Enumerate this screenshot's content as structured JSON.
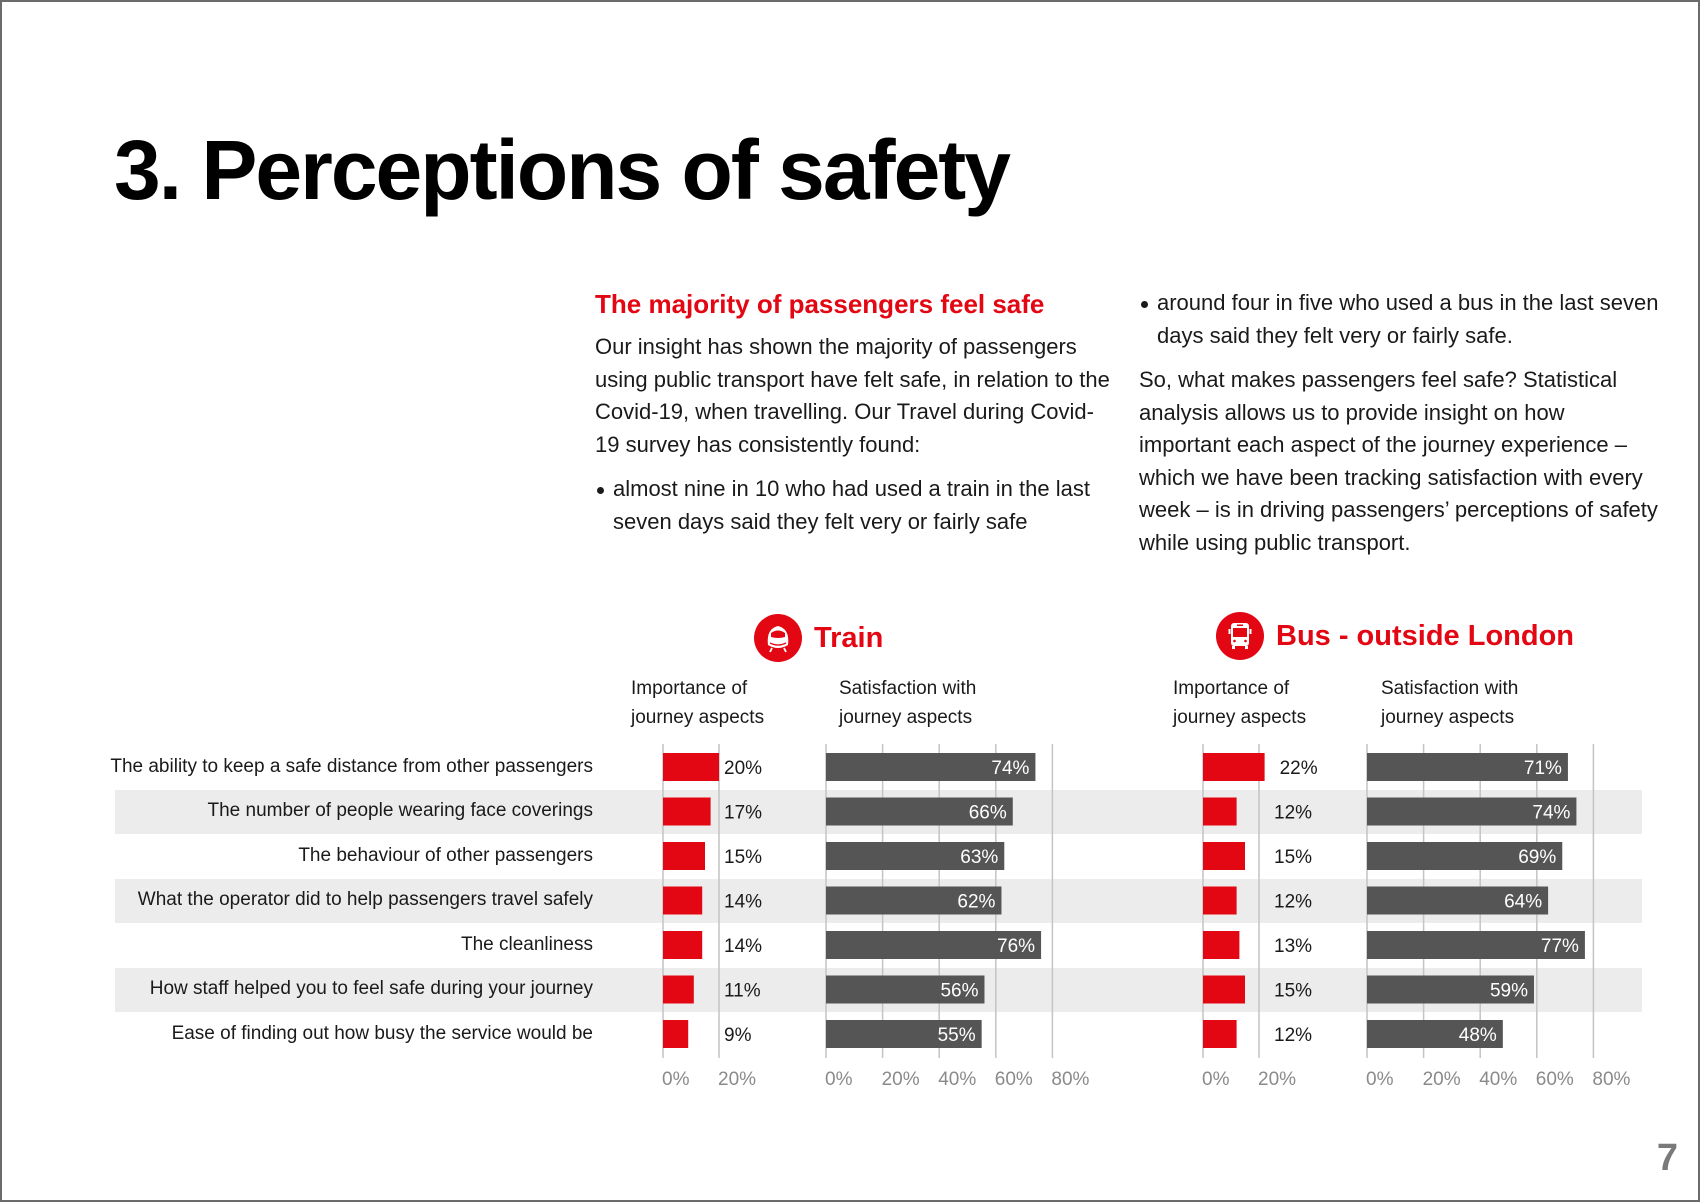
{
  "page": {
    "title": "3. Perceptions of safety",
    "page_number": "7"
  },
  "intro": {
    "subheading": "The majority of passengers feel safe",
    "paragraph1": "Our insight has shown the majority of passengers using public transport have felt safe, in relation to the Covid-19, when travelling. Our Travel during Covid-19 survey has consistently found:",
    "bullet1": "almost nine in 10 who had used a train in the last seven days said they felt very or fairly safe",
    "bullet2": "around four in five who used a bus in the last seven days said they felt very or fairly safe.",
    "paragraph2": "So, what makes passengers feel safe? Statistical analysis allows us to provide insight on how important each aspect of the journey experience – which we have been tracking satisfaction with every week – is in driving passengers’ perceptions of safety while using public transport."
  },
  "colors": {
    "accent_red": "#e30613",
    "bar_grey": "#555555",
    "band_grey": "#ececec",
    "axis_label_grey": "#8a8a8a"
  },
  "icons": {
    "train": "train-icon",
    "bus": "bus-icon"
  },
  "chart_data": {
    "type": "bar",
    "orientation": "horizontal",
    "categories": [
      "The ability to keep a safe distance from other passengers",
      "The number of people wearing face coverings",
      "The behaviour of other passengers",
      "What the operator did to help passengers travel safely",
      "The cleanliness",
      "How staff helped you to feel safe during your journey",
      "Ease of finding out how busy the service would be"
    ],
    "panels": [
      {
        "mode": "Train",
        "importance": {
          "header": [
            "Importance of",
            "journey aspects"
          ],
          "values": [
            20,
            17,
            15,
            14,
            14,
            11,
            9
          ],
          "labels": [
            "20%",
            "17%",
            "15%",
            "14%",
            "14%",
            "11%",
            "9%"
          ],
          "xlim": [
            0,
            20
          ],
          "ticks": [
            "0%",
            "20%"
          ]
        },
        "satisfaction": {
          "header": [
            "Satisfaction with",
            "journey aspects"
          ],
          "values": [
            74,
            66,
            63,
            62,
            76,
            56,
            55
          ],
          "labels": [
            "74%",
            "66%",
            "63%",
            "62%",
            "76%",
            "56%",
            "55%"
          ],
          "xlim": [
            0,
            80
          ],
          "ticks": [
            "0%",
            "20%",
            "40%",
            "60%",
            "80%"
          ]
        }
      },
      {
        "mode": "Bus - outside London",
        "importance": {
          "header": [
            "Importance of",
            "journey aspects"
          ],
          "values": [
            22,
            12,
            15,
            12,
            13,
            15,
            12
          ],
          "labels": [
            "22%",
            "12%",
            "15%",
            "12%",
            "13%",
            "15%",
            "12%"
          ],
          "xlim": [
            0,
            20
          ],
          "ticks": [
            "0%",
            "20%"
          ]
        },
        "satisfaction": {
          "header": [
            "Satisfaction with",
            "journey aspects"
          ],
          "values": [
            71,
            74,
            69,
            64,
            77,
            59,
            48
          ],
          "labels": [
            "71%",
            "74%",
            "69%",
            "64%",
            "77%",
            "59%",
            "48%"
          ],
          "xlim": [
            0,
            80
          ],
          "ticks": [
            "0%",
            "20%",
            "40%",
            "60%",
            "80%"
          ]
        }
      }
    ],
    "grid": true,
    "alternating_row_bands": true
  }
}
